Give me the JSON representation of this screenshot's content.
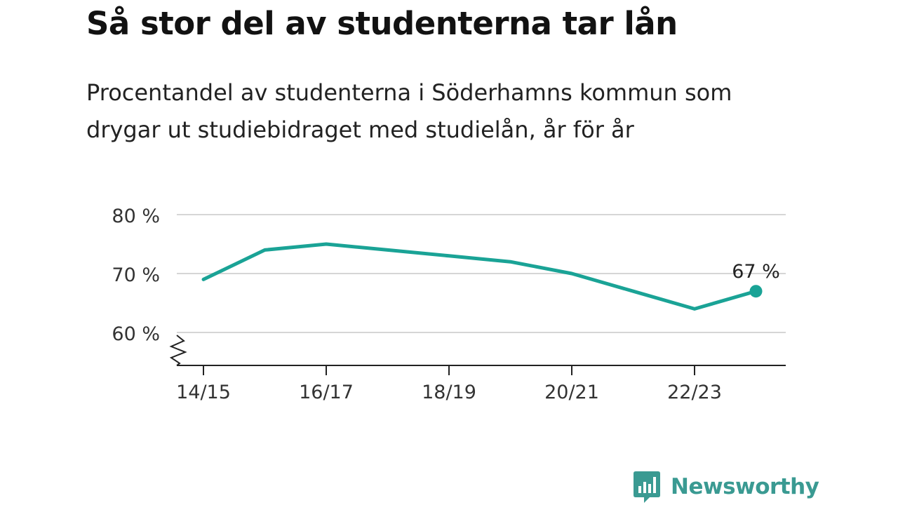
{
  "header": {
    "title": "Så stor del av studenterna tar lån",
    "subtitle_line1": "Procentandel av studenterna i Söderhamns kommun som",
    "subtitle_line2": "drygar ut studiebidraget med studielån, år för år"
  },
  "brand": {
    "name": "Newsworthy",
    "color": "#3a9a92"
  },
  "chart_data": {
    "type": "line",
    "title": "Så stor del av studenterna tar lån",
    "subtitle": "Procentandel av studenterna i Söderhamns kommun som drygar ut studiebidraget med studielån, år för år",
    "x": [
      "14/15",
      "15/16",
      "16/17",
      "17/18",
      "18/19",
      "19/20",
      "20/21",
      "21/22",
      "22/23",
      "23/24"
    ],
    "x_tick_labels": [
      "14/15",
      "16/17",
      "18/19",
      "20/21",
      "22/23"
    ],
    "series": [
      {
        "values": [
          69,
          74,
          75,
          74,
          73,
          72,
          70,
          67,
          64,
          67
        ],
        "color": "#1aa396"
      }
    ],
    "ylim": [
      55,
      80
    ],
    "y_ticks": [
      60,
      70,
      80
    ],
    "y_tick_labels": [
      "60 %",
      "70 %",
      "80 %"
    ],
    "axis_break": true,
    "grid": true,
    "last_value_label": "67 %"
  }
}
